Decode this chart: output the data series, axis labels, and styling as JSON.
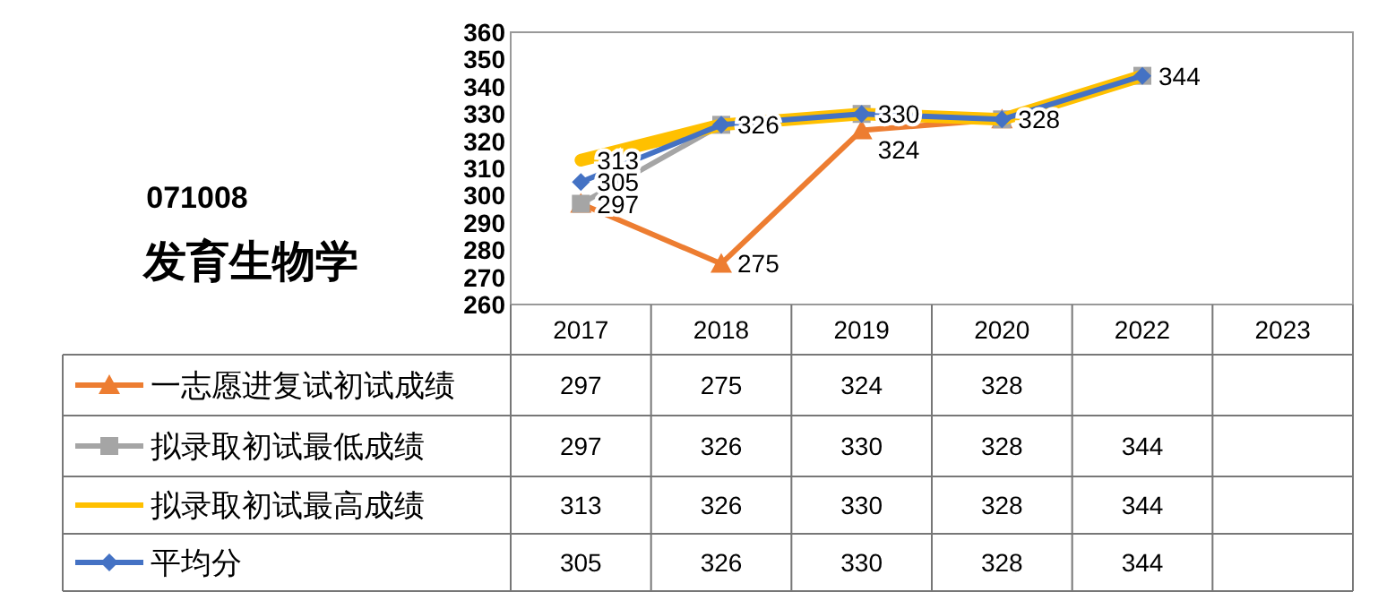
{
  "chart_data": {
    "type": "line",
    "title": "071008",
    "subtitle": "发育生物学",
    "categories": [
      "2017",
      "2018",
      "2019",
      "2020",
      "2022",
      "2023"
    ],
    "ylim": [
      260,
      360
    ],
    "yticks": [
      260,
      270,
      280,
      290,
      300,
      310,
      320,
      330,
      340,
      350,
      360
    ],
    "data_labels": true,
    "grid": false,
    "legend": "bottom left",
    "series": [
      {
        "name": "一志愿进复试初试成绩",
        "color": "#ed7d31",
        "marker": "triangle",
        "values": [
          297,
          275,
          324,
          328,
          null,
          null
        ]
      },
      {
        "name": "拟录取初试最低成绩",
        "color": "#a5a5a5",
        "marker": "square",
        "values": [
          297,
          326,
          330,
          328,
          344,
          null
        ]
      },
      {
        "name": "拟录取初试最高成绩",
        "color": "#ffc000",
        "marker": "none",
        "values": [
          313,
          326,
          330,
          328,
          344,
          null
        ]
      },
      {
        "name": "平均分",
        "color": "#4472c4",
        "marker": "diamond",
        "values": [
          305,
          326,
          330,
          328,
          344,
          null
        ]
      }
    ],
    "annotations": [
      {
        "text": "313",
        "x": "2017",
        "y": 313
      },
      {
        "text": "305",
        "x": "2017",
        "y": 305
      },
      {
        "text": "297",
        "x": "2017",
        "y": 297
      },
      {
        "text": "275",
        "x": "2018",
        "y": 275
      },
      {
        "text": "326",
        "x": "2018",
        "y": 326
      },
      {
        "text": "330",
        "x": "2019",
        "y": 330
      },
      {
        "text": "324",
        "x": "2019",
        "y": 324
      },
      {
        "text": "328",
        "x": "2020",
        "y": 328
      },
      {
        "text": "344",
        "x": "2022",
        "y": 344
      }
    ]
  }
}
